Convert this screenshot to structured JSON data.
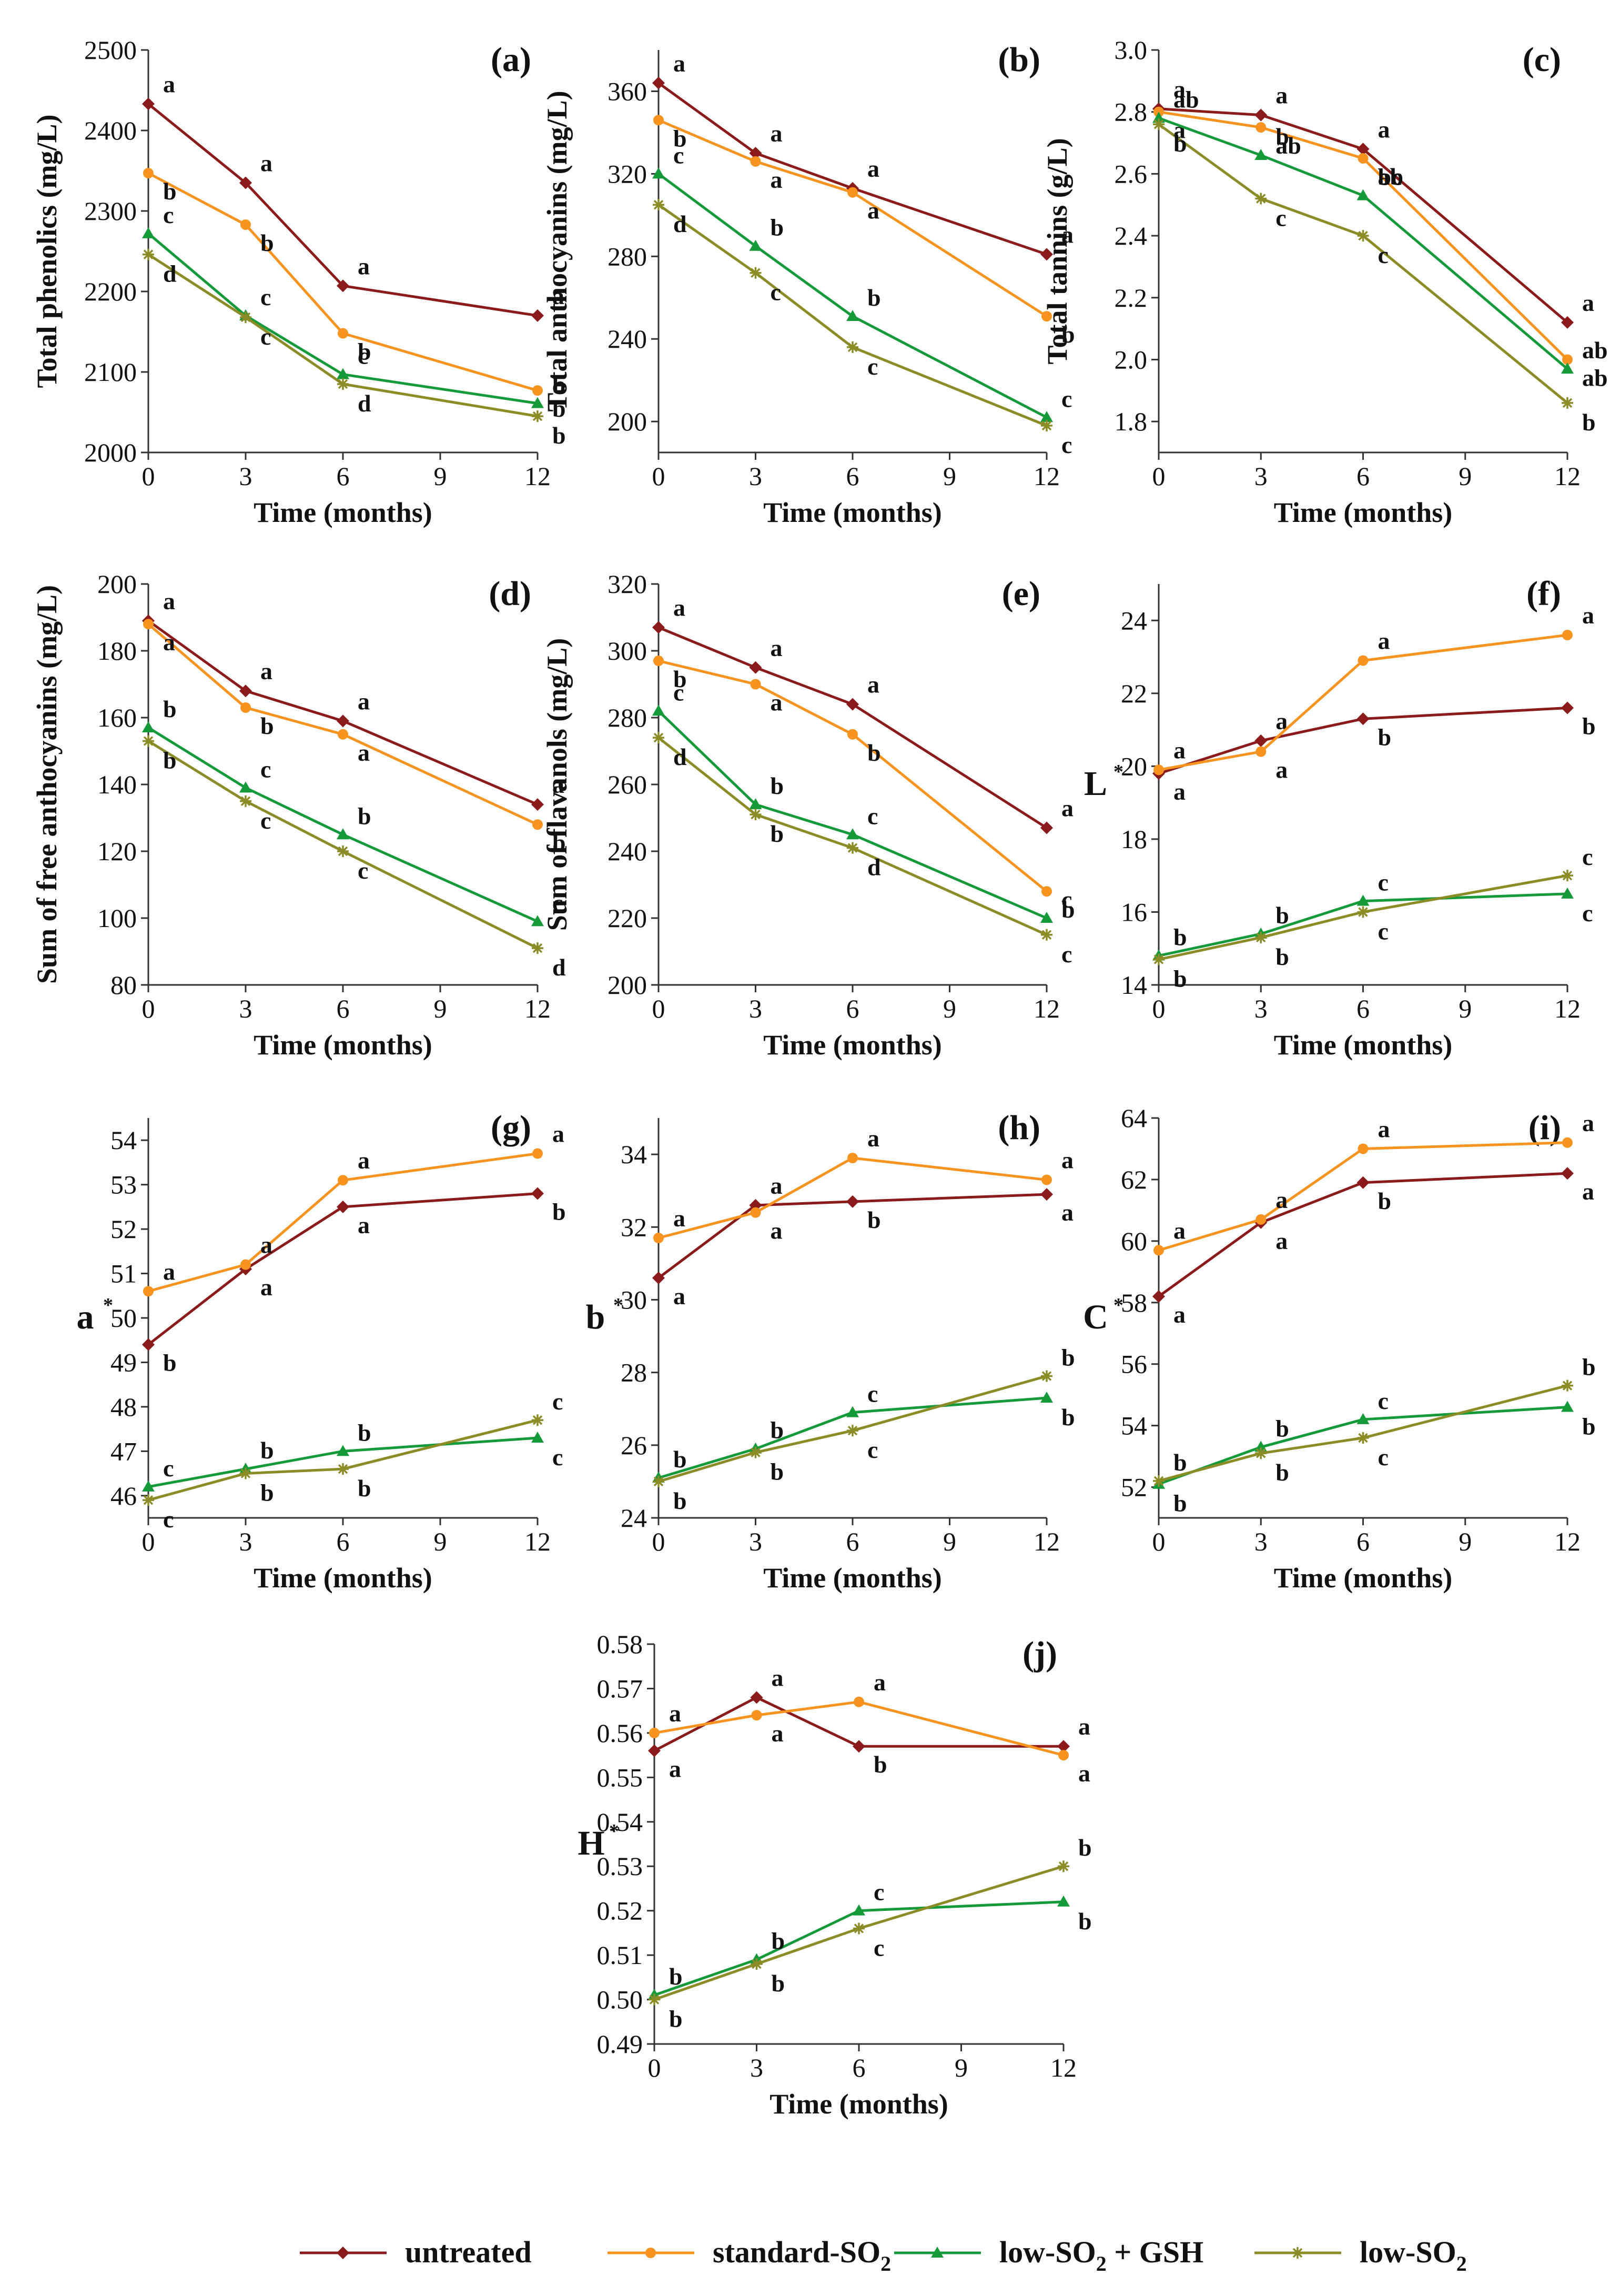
{
  "series_styles": [
    {
      "name": "untreated",
      "color": "#8B1A1A",
      "marker": "diamond"
    },
    {
      "name": "standard-SO2",
      "color": "#F7931E",
      "marker": "circle"
    },
    {
      "name": "low-SO2 + GSH",
      "color": "#159A3A",
      "marker": "triangle"
    },
    {
      "name": "low-SO2",
      "color": "#8C8C26",
      "marker": "star"
    }
  ],
  "legend": {
    "position": "bottom-center",
    "entries": [
      {
        "label": "untreated",
        "sub": ""
      },
      {
        "label": "standard-SO",
        "sub": "2"
      },
      {
        "label": "low-SO",
        "sub": "2",
        "suffix": " + GSH"
      },
      {
        "label": "low-SO",
        "sub": "2"
      }
    ]
  },
  "chart_data": [
    {
      "panel": "(a)",
      "type": "line",
      "ylabel": "Total phenolics (mg/L)",
      "xlabel": "Time (months)",
      "x": [
        0,
        3,
        6,
        12
      ],
      "xticks": [
        "0",
        "3",
        "6",
        "9",
        "12"
      ],
      "ylim": [
        2000,
        2500
      ],
      "yticks": [
        "2000",
        "2100",
        "2200",
        "2300",
        "2400",
        "2500"
      ],
      "series": [
        {
          "name": "untreated",
          "values": [
            2433,
            2335,
            2207,
            2170
          ],
          "letters": [
            "a",
            "a",
            "a",
            "a"
          ]
        },
        {
          "name": "standard-SO2",
          "values": [
            2347,
            2283,
            2148,
            2077
          ],
          "letters": [
            "b",
            "b",
            "b",
            "b"
          ]
        },
        {
          "name": "low-SO2 + GSH",
          "values": [
            2272,
            2170,
            2097,
            2061
          ],
          "letters": [
            "c",
            "c",
            "c",
            "b"
          ]
        },
        {
          "name": "low-SO2",
          "values": [
            2246,
            2168,
            2085,
            2045
          ],
          "letters": [
            "d",
            "c",
            "d",
            "b"
          ]
        }
      ]
    },
    {
      "panel": "(b)",
      "type": "line",
      "ylabel": "Total anthocyanins (mg/L)",
      "xlabel": "Time (months)",
      "x": [
        0,
        3,
        6,
        12
      ],
      "xticks": [
        "0",
        "3",
        "6",
        "9",
        "12"
      ],
      "ylim": [
        185,
        380
      ],
      "yticks": [
        "200",
        "240",
        "280",
        "320",
        "360"
      ],
      "series": [
        {
          "name": "untreated",
          "values": [
            364,
            330,
            313,
            281
          ],
          "letters": [
            "a",
            "a",
            "a",
            "a"
          ]
        },
        {
          "name": "standard-SO2",
          "values": [
            346,
            326,
            311,
            251
          ],
          "letters": [
            "b",
            "a",
            "a",
            "b"
          ]
        },
        {
          "name": "low-SO2 + GSH",
          "values": [
            320,
            285,
            251,
            202
          ],
          "letters": [
            "c",
            "b",
            "b",
            "c"
          ]
        },
        {
          "name": "low-SO2",
          "values": [
            305,
            272,
            236,
            198
          ],
          "letters": [
            "d",
            "c",
            "c",
            "c"
          ]
        }
      ]
    },
    {
      "panel": "(c)",
      "type": "line",
      "ylabel": "Total tannins (g/L)",
      "xlabel": "Time (months)",
      "x": [
        0,
        3,
        6,
        12
      ],
      "xticks": [
        "0",
        "3",
        "6",
        "9",
        "12"
      ],
      "ylim": [
        1.7,
        3.0
      ],
      "yticks": [
        "1.8",
        "2.0",
        "2.2",
        "2.4",
        "2.6",
        "2.8",
        "3.0"
      ],
      "series": [
        {
          "name": "untreated",
          "values": [
            2.81,
            2.79,
            2.68,
            2.12
          ],
          "letters": [
            "a",
            "a",
            "a",
            "a"
          ]
        },
        {
          "name": "standard-SO2",
          "values": [
            2.8,
            2.75,
            2.65,
            2.0
          ],
          "letters": [
            "a",
            "ab",
            "ab",
            "ab"
          ]
        },
        {
          "name": "low-SO2 + GSH",
          "values": [
            2.78,
            2.66,
            2.53,
            1.97
          ],
          "letters": [
            "ab",
            "b",
            "bc",
            "ab"
          ]
        },
        {
          "name": "low-SO2",
          "values": [
            2.76,
            2.52,
            2.4,
            1.86
          ],
          "letters": [
            "b",
            "c",
            "c",
            "b"
          ]
        }
      ]
    },
    {
      "panel": "(d)",
      "type": "line",
      "ylabel": "Sum of free anthocyanins (mg/L)",
      "xlabel": "Time (months)",
      "x": [
        0,
        3,
        6,
        12
      ],
      "xticks": [
        "0",
        "3",
        "6",
        "9",
        "12"
      ],
      "ylim": [
        80,
        200
      ],
      "yticks": [
        "80",
        "100",
        "120",
        "140",
        "160",
        "180",
        "200"
      ],
      "series": [
        {
          "name": "untreated",
          "values": [
            189,
            168,
            159,
            134
          ],
          "letters": [
            "a",
            "a",
            "a",
            "a"
          ]
        },
        {
          "name": "standard-SO2",
          "values": [
            188,
            163,
            155,
            128
          ],
          "letters": [
            "a",
            "b",
            "a",
            "b"
          ]
        },
        {
          "name": "low-SO2 + GSH",
          "values": [
            157,
            139,
            125,
            99
          ],
          "letters": [
            "b",
            "c",
            "b",
            "c"
          ]
        },
        {
          "name": "low-SO2",
          "values": [
            153,
            135,
            120,
            91
          ],
          "letters": [
            "b",
            "c",
            "c",
            "d"
          ]
        }
      ]
    },
    {
      "panel": "(e)",
      "type": "line",
      "ylabel": "Sum of flavanols (mg/L)",
      "xlabel": "Time (months)",
      "x": [
        0,
        3,
        6,
        12
      ],
      "xticks": [
        "0",
        "3",
        "6",
        "9",
        "12"
      ],
      "ylim": [
        200,
        320
      ],
      "yticks": [
        "200",
        "220",
        "240",
        "260",
        "280",
        "300",
        "320"
      ],
      "series": [
        {
          "name": "untreated",
          "values": [
            307,
            295,
            284,
            247
          ],
          "letters": [
            "a",
            "a",
            "a",
            "a"
          ]
        },
        {
          "name": "standard-SO2",
          "values": [
            297,
            290,
            275,
            228
          ],
          "letters": [
            "b",
            "a",
            "b",
            "b"
          ]
        },
        {
          "name": "low-SO2 + GSH",
          "values": [
            282,
            254,
            245,
            220
          ],
          "letters": [
            "c",
            "b",
            "c",
            "c"
          ]
        },
        {
          "name": "low-SO2",
          "values": [
            274,
            251,
            241,
            215
          ],
          "letters": [
            "d",
            "b",
            "d",
            "c"
          ]
        }
      ]
    },
    {
      "panel": "(f)",
      "type": "line",
      "ylabel": "L",
      "ylabel_sup": "*",
      "xlabel": "Time (months)",
      "x": [
        0,
        3,
        6,
        12
      ],
      "xticks": [
        "0",
        "3",
        "6",
        "9",
        "12"
      ],
      "ylim": [
        14,
        25
      ],
      "yticks": [
        "14",
        "16",
        "18",
        "20",
        "22",
        "24"
      ],
      "series": [
        {
          "name": "untreated",
          "values": [
            19.8,
            20.7,
            21.3,
            21.6
          ],
          "letters": [
            "a",
            "a",
            "b",
            "b"
          ]
        },
        {
          "name": "standard-SO2",
          "values": [
            19.9,
            20.4,
            22.9,
            23.6
          ],
          "letters": [
            "a",
            "a",
            "a",
            "a"
          ]
        },
        {
          "name": "low-SO2 + GSH",
          "values": [
            14.8,
            15.4,
            16.3,
            16.5
          ],
          "letters": [
            "b",
            "b",
            "c",
            "c"
          ]
        },
        {
          "name": "low-SO2",
          "values": [
            14.7,
            15.3,
            16.0,
            17.0
          ],
          "letters": [
            "b",
            "b",
            "c",
            "c"
          ]
        }
      ]
    },
    {
      "panel": "(g)",
      "type": "line",
      "ylabel": "a",
      "ylabel_sup": "*",
      "xlabel": "Time (months)",
      "x": [
        0,
        3,
        6,
        12
      ],
      "xticks": [
        "0",
        "3",
        "6",
        "9",
        "12"
      ],
      "ylim": [
        45.5,
        54.5
      ],
      "yticks": [
        "46",
        "47",
        "48",
        "49",
        "50",
        "51",
        "52",
        "53",
        "54"
      ],
      "series": [
        {
          "name": "untreated",
          "values": [
            49.4,
            51.1,
            52.5,
            52.8
          ],
          "letters": [
            "b",
            "a",
            "a",
            "b"
          ]
        },
        {
          "name": "standard-SO2",
          "values": [
            50.6,
            51.2,
            53.1,
            53.7
          ],
          "letters": [
            "a",
            "a",
            "a",
            "a"
          ]
        },
        {
          "name": "low-SO2 + GSH",
          "values": [
            46.2,
            46.6,
            47.0,
            47.3
          ],
          "letters": [
            "c",
            "b",
            "b",
            "c"
          ]
        },
        {
          "name": "low-SO2",
          "values": [
            45.9,
            46.5,
            46.6,
            47.7
          ],
          "letters": [
            "c",
            "b",
            "b",
            "c"
          ]
        }
      ]
    },
    {
      "panel": "(h)",
      "type": "line",
      "ylabel": "b",
      "ylabel_sup": "*",
      "xlabel": "Time (months)",
      "x": [
        0,
        3,
        6,
        12
      ],
      "xticks": [
        "0",
        "3",
        "6",
        "9",
        "12"
      ],
      "ylim": [
        24,
        35
      ],
      "yticks": [
        "24",
        "26",
        "28",
        "30",
        "32",
        "34"
      ],
      "series": [
        {
          "name": "untreated",
          "values": [
            30.6,
            32.6,
            32.7,
            32.9
          ],
          "letters": [
            "a",
            "a",
            "b",
            "a"
          ]
        },
        {
          "name": "standard-SO2",
          "values": [
            31.7,
            32.4,
            33.9,
            33.3
          ],
          "letters": [
            "a",
            "a",
            "a",
            "a"
          ]
        },
        {
          "name": "low-SO2 + GSH",
          "values": [
            25.1,
            25.9,
            26.9,
            27.3
          ],
          "letters": [
            "b",
            "b",
            "c",
            "b"
          ]
        },
        {
          "name": "low-SO2",
          "values": [
            25.0,
            25.8,
            26.4,
            27.9
          ],
          "letters": [
            "b",
            "b",
            "c",
            "b"
          ]
        }
      ]
    },
    {
      "panel": "(i)",
      "type": "line",
      "ylabel": "C",
      "ylabel_sup": "*",
      "xlabel": "Time (months)",
      "x": [
        0,
        3,
        6,
        12
      ],
      "xticks": [
        "0",
        "3",
        "6",
        "9",
        "12"
      ],
      "ylim": [
        51,
        64
      ],
      "yticks": [
        "52",
        "54",
        "56",
        "58",
        "60",
        "62",
        "64"
      ],
      "series": [
        {
          "name": "untreated",
          "values": [
            58.2,
            60.6,
            61.9,
            62.2
          ],
          "letters": [
            "a",
            "a",
            "b",
            "a"
          ]
        },
        {
          "name": "standard-SO2",
          "values": [
            59.7,
            60.7,
            63.0,
            63.2
          ],
          "letters": [
            "a",
            "a",
            "a",
            "a"
          ]
        },
        {
          "name": "low-SO2 + GSH",
          "values": [
            52.1,
            53.3,
            54.2,
            54.6
          ],
          "letters": [
            "b",
            "b",
            "c",
            "b"
          ]
        },
        {
          "name": "low-SO2",
          "values": [
            52.2,
            53.1,
            53.6,
            55.3
          ],
          "letters": [
            "b",
            "b",
            "c",
            "b"
          ]
        }
      ]
    },
    {
      "panel": "(j)",
      "type": "line",
      "ylabel": "H",
      "ylabel_sup": "*",
      "xlabel": "Time (months)",
      "x": [
        0,
        3,
        6,
        12
      ],
      "xticks": [
        "0",
        "3",
        "6",
        "9",
        "12"
      ],
      "ylim": [
        0.49,
        0.58
      ],
      "yticks": [
        "0.49",
        "0.50",
        "0.51",
        "0.52",
        "0.53",
        "0.54",
        "0.55",
        "0.56",
        "0.57",
        "0.58"
      ],
      "series": [
        {
          "name": "untreated",
          "values": [
            0.556,
            0.568,
            0.557,
            0.557
          ],
          "letters": [
            "a",
            "a",
            "b",
            "a"
          ]
        },
        {
          "name": "standard-SO2",
          "values": [
            0.56,
            0.564,
            0.567,
            0.555
          ],
          "letters": [
            "a",
            "a",
            "a",
            "a"
          ]
        },
        {
          "name": "low-SO2 + GSH",
          "values": [
            0.501,
            0.509,
            0.52,
            0.522
          ],
          "letters": [
            "b",
            "b",
            "c",
            "b"
          ]
        },
        {
          "name": "low-SO2",
          "values": [
            0.5,
            0.508,
            0.516,
            0.53
          ],
          "letters": [
            "b",
            "b",
            "c",
            "b"
          ]
        }
      ]
    }
  ]
}
